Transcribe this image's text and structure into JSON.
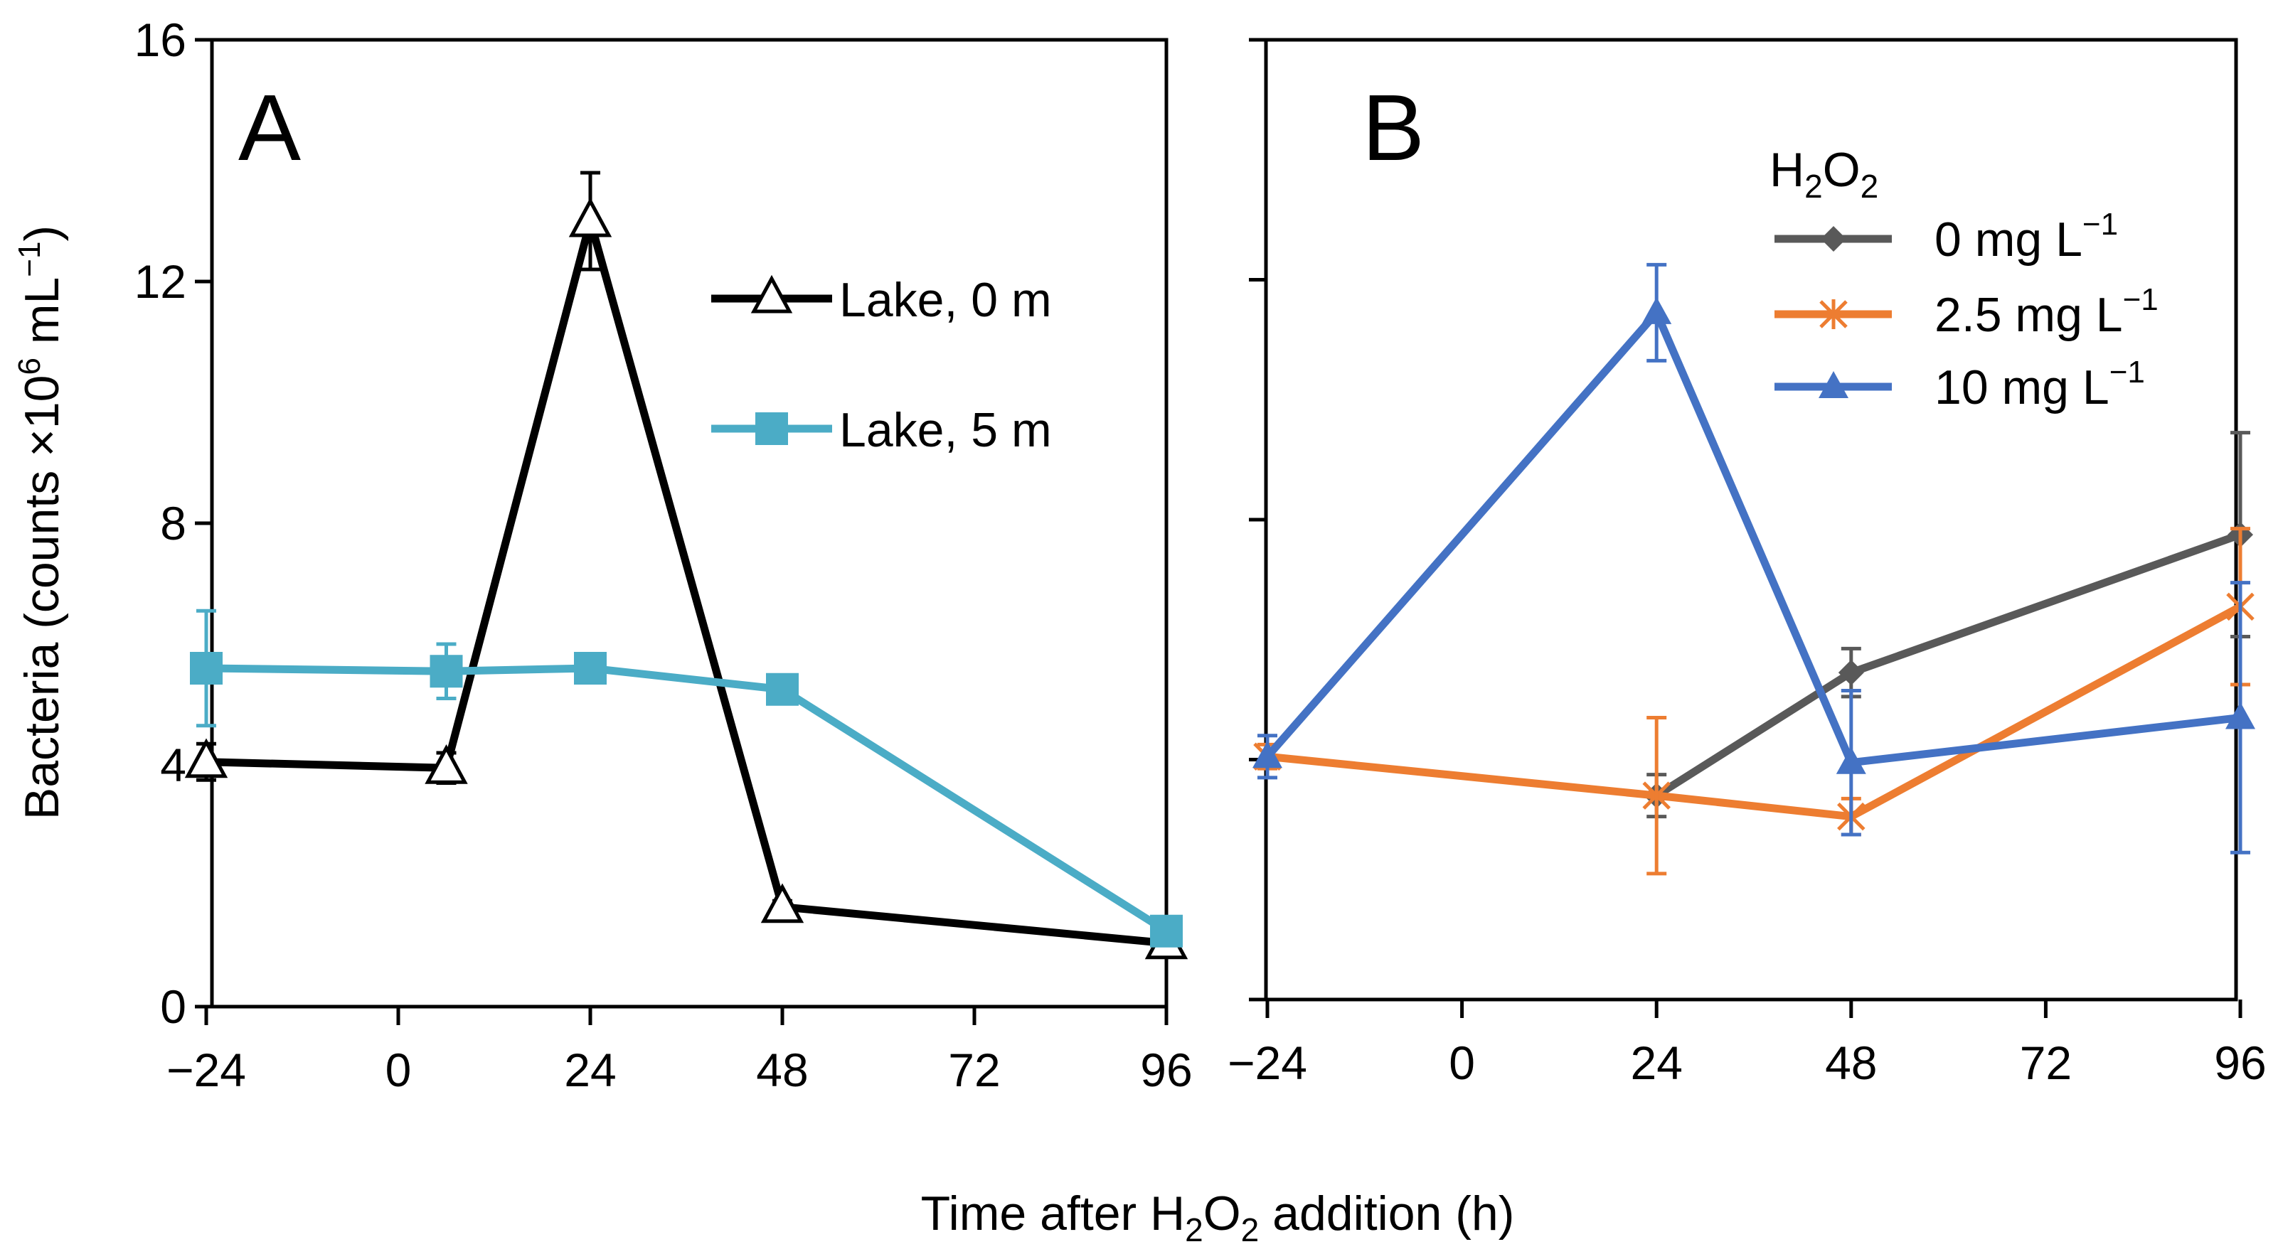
{
  "chart_data": [
    {
      "panel": "A",
      "type": "line",
      "panel_label": "A",
      "x_ticks": [
        -24,
        0,
        24,
        48,
        72,
        96
      ],
      "y_ticks": [
        0,
        4,
        8,
        12,
        16
      ],
      "xlim": [
        -24,
        96
      ],
      "ylim": [
        0,
        16
      ],
      "series": [
        {
          "name": "Lake, 0 m",
          "color": "#000000",
          "marker": "open-triangle",
          "points": [
            {
              "x": -24,
              "y": 4.05,
              "err": 0.3
            },
            {
              "x": 6,
              "y": 3.95,
              "err": 0.25
            },
            {
              "x": 24,
              "y": 13.0,
              "err": 0.8
            },
            {
              "x": 48,
              "y": 1.65,
              "err": 0.1
            },
            {
              "x": 96,
              "y": 1.05,
              "err": 0.1
            }
          ]
        },
        {
          "name": "Lake, 5 m",
          "color": "#4bacc6",
          "marker": "filled-square",
          "points": [
            {
              "x": -24,
              "y": 5.6,
              "err": 0.95
            },
            {
              "x": 6,
              "y": 5.55,
              "err": 0.45
            },
            {
              "x": 24,
              "y": 5.6,
              "err": 0.1
            },
            {
              "x": 48,
              "y": 5.25,
              "err": 0.1
            },
            {
              "x": 96,
              "y": 1.25,
              "err": 0.15
            }
          ]
        }
      ]
    },
    {
      "panel": "B",
      "type": "line",
      "panel_label": "B",
      "x_ticks": [
        -24,
        0,
        24,
        48,
        72,
        96
      ],
      "xlim": [
        -24,
        96
      ],
      "ylim": [
        0,
        16
      ],
      "legend_title_main": "H",
      "legend_title_sub1": "2",
      "legend_title_mid": "O",
      "legend_title_sub2": "2",
      "series": [
        {
          "name": "0 mg L",
          "name_sup": "−1",
          "color": "#595959",
          "marker": "diamond",
          "points": [
            {
              "x": 24,
              "y": 3.4,
              "err": 0.35
            },
            {
              "x": 48,
              "y": 5.45,
              "err": 0.4
            },
            {
              "x": 96,
              "y": 7.75,
              "err": 1.7
            }
          ]
        },
        {
          "name": "2.5 mg L",
          "name_sup": "−1",
          "color": "#ed7d31",
          "marker": "star",
          "points": [
            {
              "x": -24,
              "y": 4.05,
              "err": 0.2
            },
            {
              "x": 24,
              "y": 3.4,
              "err": 1.3
            },
            {
              "x": 48,
              "y": 3.05,
              "err": 0.3
            },
            {
              "x": 96,
              "y": 6.55,
              "err": 1.3
            }
          ]
        },
        {
          "name": "10 mg L",
          "name_sup": "−1",
          "color": "#4472c4",
          "marker": "filled-triangle",
          "points": [
            {
              "x": -24,
              "y": 4.05,
              "err": 0.35
            },
            {
              "x": 24,
              "y": 11.45,
              "err": 0.8
            },
            {
              "x": 48,
              "y": 3.95,
              "err": 1.2
            },
            {
              "x": 96,
              "y": 4.7,
              "err": 2.25
            }
          ]
        }
      ]
    }
  ],
  "labels": {
    "ylabel_pre": "Bacteria (counts ×10",
    "ylabel_sup1": "6",
    "ylabel_mid": " mL",
    "ylabel_sup2": "−1",
    "ylabel_post": ")",
    "xlabel_pre": "Time after H",
    "xlabel_sub1": "2",
    "xlabel_mid": "O",
    "xlabel_sub2": "2",
    "xlabel_post": " addition (h)"
  }
}
